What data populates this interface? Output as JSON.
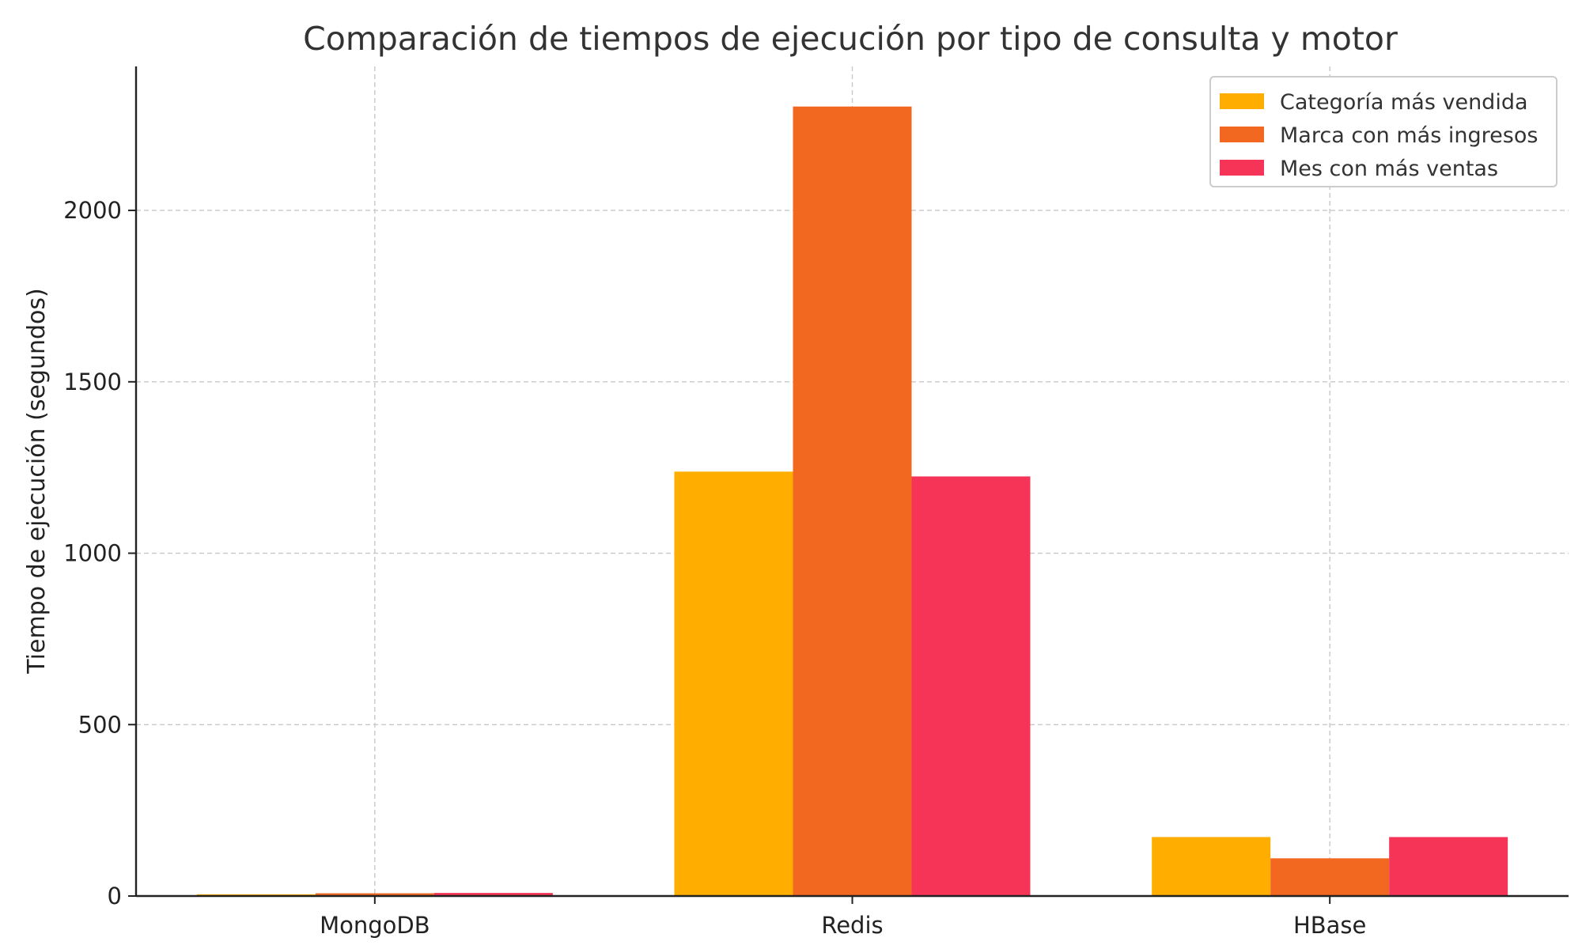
{
  "chart_data": {
    "type": "bar",
    "title": "Comparación de tiempos de ejecución por tipo de consulta y motor",
    "xlabel": "",
    "ylabel": "Tiempo de ejecución (segundos)",
    "categories": [
      "MongoDB",
      "Redis",
      "HBase"
    ],
    "series": [
      {
        "name": "Categoría más vendida",
        "color": "#FFAE00",
        "values": [
          5,
          1238,
          172
        ]
      },
      {
        "name": "Marca con más ingresos",
        "color": "#F26821",
        "values": [
          8,
          2303,
          110
        ]
      },
      {
        "name": "Mes con más ventas",
        "color": "#F63457",
        "values": [
          9,
          1224,
          172
        ]
      }
    ],
    "ylim": [
      0,
      2420
    ],
    "yticks": [
      0,
      500,
      1000,
      1500,
      2000
    ],
    "grid": true,
    "legend_position": "top-right"
  }
}
